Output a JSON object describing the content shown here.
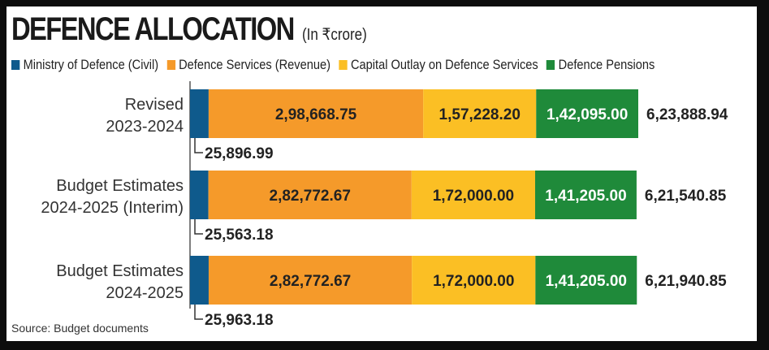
{
  "chart_data": {
    "type": "bar",
    "orientation": "horizontal",
    "stacked": true,
    "title": "DEFENCE ALLOCATION",
    "subtitle": "(In ₹crore)",
    "categories": [
      [
        "Revised",
        "2023-2024"
      ],
      [
        "Budget Estimates",
        "2024-2025 (Interim)"
      ],
      [
        "Budget Estimates",
        "2024-2025"
      ]
    ],
    "series": [
      {
        "name": "Ministry of Defence (Civil)",
        "color": "#0f5a8c",
        "values": [
          25896.99,
          25563.18,
          25963.18
        ],
        "labels": [
          "25,896.99",
          "25,563.18",
          "25,963.18"
        ]
      },
      {
        "name": "Defence Services (Revenue)",
        "color": "#f59a2a",
        "values": [
          298668.75,
          282772.67,
          282772.67
        ],
        "labels": [
          "2,98,668.75",
          "2,82,772.67",
          "2,82,772.67"
        ]
      },
      {
        "name": "Capital Outlay on Defence Services",
        "color": "#fbbf24",
        "values": [
          157228.2,
          172000.0,
          172000.0
        ],
        "labels": [
          "1,57,228.20",
          "1,72,000.00",
          "1,72,000.00"
        ]
      },
      {
        "name": "Defence Pensions",
        "color": "#1f8a3a",
        "values": [
          142095.0,
          141205.0,
          141205.0
        ],
        "labels": [
          "1,42,095.00",
          "1,41,205.00",
          "1,41,205.00"
        ]
      }
    ],
    "totals": [
      "6,23,888.94",
      "6,21,540.85",
      "6,21,940.85"
    ],
    "legend_position": "top",
    "grid": false
  },
  "source": "Source: Budget documents"
}
